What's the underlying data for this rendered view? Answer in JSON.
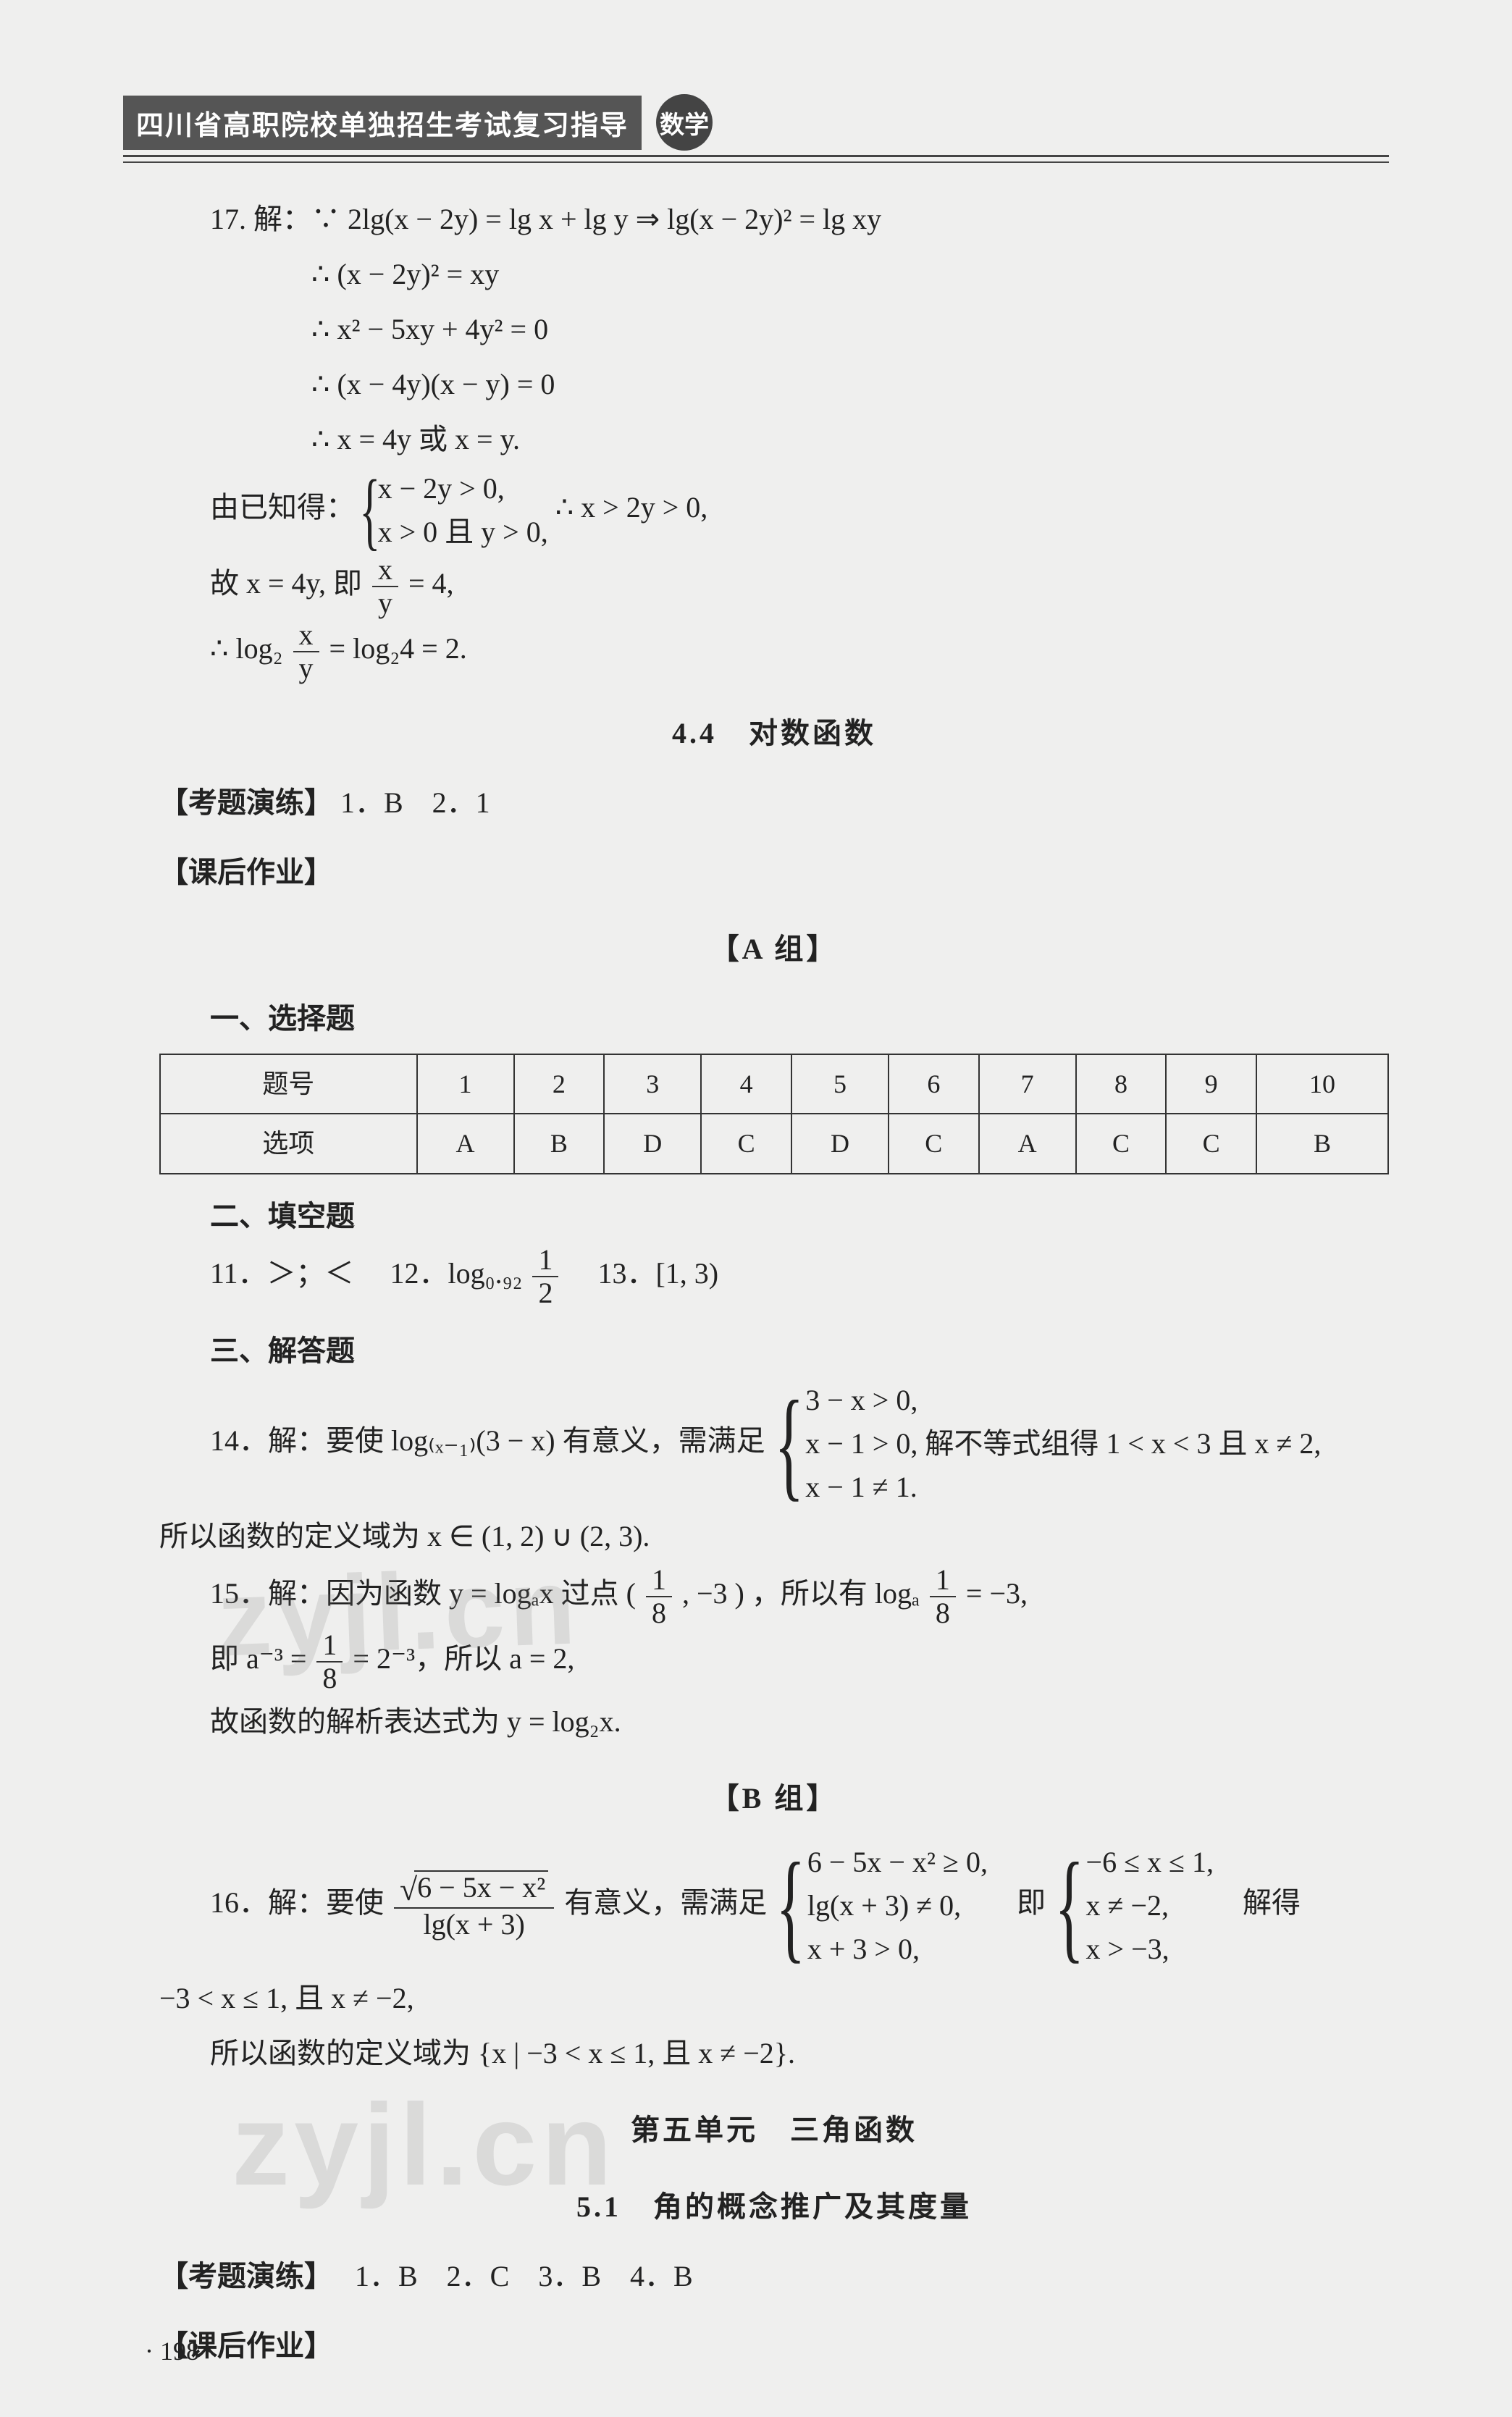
{
  "header": {
    "title": "四川省高职院校单独招生考试复习指导",
    "badge": "数学"
  },
  "q17": {
    "num": "17.",
    "l1": "解：∵ 2lg(x − 2y) = lg x + lg y ⇒ lg(x − 2y)² = lg xy",
    "l2": "∴ (x − 2y)² = xy",
    "l3": "∴ x² − 5xy + 4y² = 0",
    "l4": "∴ (x − 4y)(x − y) = 0",
    "l5": "∴ x = 4y 或 x = y.",
    "given_prefix": "由已知得：",
    "case1": "x − 2y > 0,",
    "case2": "x > 0 且 y > 0,",
    "given_suffix": "∴ x > 2y > 0,",
    "l7a": "故 x = 4y, 即",
    "l7b": " = 4,",
    "l8a": "∴ log₂ ",
    "l8b": " = log₂4 = 2.",
    "frac_num": "x",
    "frac_den": "y"
  },
  "sec44": {
    "title": "4.4　对数函数",
    "kaoti_label": "【考题演练】",
    "kaoti": "1．B　2．1",
    "kehou": "【课后作业】",
    "groupA": "【A 组】",
    "h_choice": "一、选择题",
    "table": {
      "head": [
        "题号",
        "1",
        "2",
        "3",
        "4",
        "5",
        "6",
        "7",
        "8",
        "9",
        "10"
      ],
      "row": [
        "选项",
        "A",
        "B",
        "D",
        "C",
        "D",
        "C",
        "A",
        "C",
        "C",
        "B"
      ]
    },
    "h_fill": "二、填空题",
    "q11": "11．＞；＜",
    "q12a": "12．log₀.₉₂ ",
    "q12_num": "1",
    "q12_den": "2",
    "q13": "13．[1, 3)",
    "h_ans": "三、解答题",
    "q14_a": "14．解：要使 log₍ₓ₋₁₎(3 − x) 有意义，需满足",
    "q14_c1": "3 − x > 0,",
    "q14_c2": "x − 1 > 0,",
    "q14_c3": "x − 1 ≠ 1.",
    "q14_b": "解不等式组得 1 < x < 3 且 x ≠ 2,",
    "q14_c": "所以函数的定义域为 x ∈ (1, 2) ∪ (2, 3).",
    "q15_a": "15．解：因为函数 y = logₐx 过点 ",
    "q15_pt_num": "1",
    "q15_pt_den": "8",
    "q15_pt_mid": "( ",
    "q15_pt_sep": " , −3 )",
    "q15_b": "，所以有 logₐ ",
    "q15_c": " = −3,",
    "q15_d": "即 a⁻³ = ",
    "q15_e": " = 2⁻³，所以 a = 2,",
    "q15_f": "故函数的解析表达式为 y = log₂x.",
    "groupB": "【B 组】",
    "q16_a": "16．解：要使 ",
    "q16_sqrt": "6 − 5x − x²",
    "q16_den": "lg(x + 3)",
    "q16_b": " 有意义，需满足",
    "q16_c1": "6 − 5x − x² ≥ 0,",
    "q16_c2": "lg(x + 3) ≠ 0,",
    "q16_c3": "x + 3 > 0,",
    "q16_mid": "即",
    "q16_d1": "−6 ≤ x ≤ 1,",
    "q16_d2": "x ≠ −2,",
    "q16_d3": "x > −3,",
    "q16_e": "解得",
    "q16_f": "−3 < x ≤ 1, 且 x ≠ −2,",
    "q16_g": "所以函数的定义域为 {x | −3 < x ≤ 1, 且 x ≠ −2}."
  },
  "unit5": {
    "title": "第五单元　三角函数",
    "sec51": "5.1　角的概念推广及其度量",
    "kaoti_label": "【考题演练】",
    "kaoti": "1．B　2．C　3．B　4．B",
    "kehou": "【课后作业】"
  },
  "page_number": "· 198 ·",
  "watermark": "zyjl.cn"
}
